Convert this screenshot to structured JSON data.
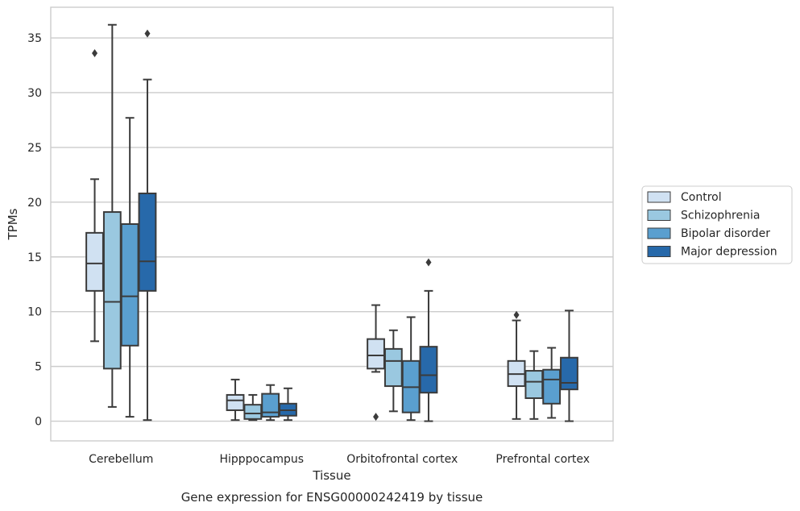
{
  "chart_data": {
    "type": "box",
    "xlabel": "Tissue",
    "ylabel": "TPMs",
    "caption": "Gene expression for ENSG00000242419 by tissue",
    "ylim": [
      -1.8,
      37.8
    ],
    "yticks": [
      0,
      5,
      10,
      15,
      20,
      25,
      30,
      35
    ],
    "grid": "horizontal",
    "legend_position": "right",
    "categories": [
      "Cerebellum",
      "Hipppocampus",
      "Orbitofrontal cortex",
      "Prefrontal cortex"
    ],
    "series": [
      {
        "name": "Control",
        "color": "#d0e1f2",
        "boxes": [
          {
            "whisker_low": 7.3,
            "q1": 11.9,
            "median": 14.4,
            "q3": 17.2,
            "whisker_high": 22.1,
            "outliers": [
              33.6
            ]
          },
          {
            "whisker_low": 0.1,
            "q1": 1.0,
            "median": 1.9,
            "q3": 2.4,
            "whisker_high": 3.8,
            "outliers": []
          },
          {
            "whisker_low": 4.5,
            "q1": 4.8,
            "median": 6.0,
            "q3": 7.5,
            "whisker_high": 10.6,
            "outliers": [
              0.4
            ]
          },
          {
            "whisker_low": 0.2,
            "q1": 3.2,
            "median": 4.3,
            "q3": 5.5,
            "whisker_high": 9.2,
            "outliers": [
              9.7
            ]
          }
        ]
      },
      {
        "name": "Schizophrenia",
        "color": "#9ac8e0",
        "boxes": [
          {
            "whisker_low": 1.3,
            "q1": 4.8,
            "median": 10.9,
            "q3": 19.1,
            "whisker_high": 36.2,
            "outliers": []
          },
          {
            "whisker_low": 0.1,
            "q1": 0.2,
            "median": 0.7,
            "q3": 1.5,
            "whisker_high": 2.4,
            "outliers": []
          },
          {
            "whisker_low": 0.9,
            "q1": 3.2,
            "median": 5.5,
            "q3": 6.6,
            "whisker_high": 8.3,
            "outliers": []
          },
          {
            "whisker_low": 0.2,
            "q1": 2.1,
            "median": 3.6,
            "q3": 4.6,
            "whisker_high": 6.4,
            "outliers": []
          }
        ]
      },
      {
        "name": "Bipolar disorder",
        "color": "#5a9fcf",
        "boxes": [
          {
            "whisker_low": 0.4,
            "q1": 6.9,
            "median": 11.4,
            "q3": 18.0,
            "whisker_high": 27.7,
            "outliers": []
          },
          {
            "whisker_low": 0.1,
            "q1": 0.4,
            "median": 0.8,
            "q3": 2.5,
            "whisker_high": 3.3,
            "outliers": []
          },
          {
            "whisker_low": 0.1,
            "q1": 0.8,
            "median": 3.1,
            "q3": 5.5,
            "whisker_high": 9.5,
            "outliers": []
          },
          {
            "whisker_low": 0.3,
            "q1": 1.6,
            "median": 3.8,
            "q3": 4.7,
            "whisker_high": 6.7,
            "outliers": []
          }
        ]
      },
      {
        "name": "Major depression",
        "color": "#2769aa",
        "boxes": [
          {
            "whisker_low": 0.1,
            "q1": 11.9,
            "median": 14.6,
            "q3": 20.8,
            "whisker_high": 31.2,
            "outliers": [
              35.4
            ]
          },
          {
            "whisker_low": 0.1,
            "q1": 0.5,
            "median": 1.0,
            "q3": 1.6,
            "whisker_high": 3.0,
            "outliers": []
          },
          {
            "whisker_low": 0.0,
            "q1": 2.6,
            "median": 4.2,
            "q3": 6.8,
            "whisker_high": 11.9,
            "outliers": [
              14.5
            ]
          },
          {
            "whisker_low": 0.0,
            "q1": 2.9,
            "median": 3.5,
            "q3": 5.8,
            "whisker_high": 10.1,
            "outliers": []
          }
        ]
      }
    ],
    "style": {
      "line_color": "#3b3b3b",
      "grid_color": "#cccccc",
      "frame_color": "#cccccc"
    }
  }
}
